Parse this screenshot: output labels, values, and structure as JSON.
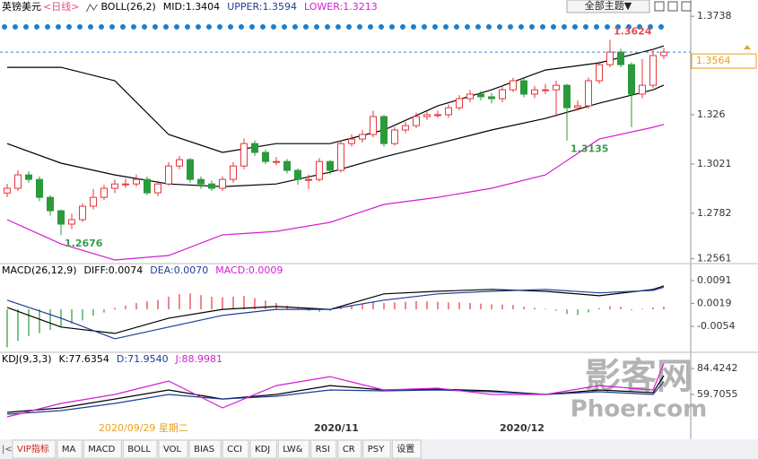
{
  "header": {
    "title": "英镑美元",
    "period": "<日线>",
    "theme_button": "全部主题▼",
    "cursor_date": "2020/09/29 星期二",
    "watermark": {
      "title": "影客网",
      "site": "Phoer.com"
    },
    "tabs": [
      "VIP指标",
      "MA",
      "MACD",
      "BOLL",
      "VOL",
      "BIAS",
      "CCI",
      "KDJ",
      "LW&",
      "RSI",
      "CR",
      "PSY",
      "设置"
    ]
  },
  "chart_data": [
    {
      "type": "candlestick",
      "indicator": "BOLL(26,2)",
      "up_color": "#e8363b",
      "down_color": "#2a9a3a",
      "open": [
        1.288,
        1.2903,
        1.2968,
        1.2946,
        1.2859,
        1.2794,
        1.2729,
        1.2751,
        1.2816,
        1.2859,
        1.2903,
        1.2924,
        1.2924,
        1.2946,
        1.2881,
        1.2924,
        1.3011,
        1.3042,
        1.2946,
        1.2924,
        1.2903,
        1.2946,
        1.3011,
        1.312,
        1.3077,
        1.3033,
        1.3033,
        1.299,
        1.2946,
        1.2946,
        1.3033,
        1.299,
        1.312,
        1.3142,
        1.3164,
        1.3251,
        1.312,
        1.3186,
        1.3207,
        1.3251,
        1.326,
        1.326,
        1.3294,
        1.3338,
        1.336,
        1.3347,
        1.3338,
        1.3381,
        1.3425,
        1.336,
        1.3381,
        1.3381,
        1.3403,
        1.3294,
        1.3303,
        1.3425,
        1.3503,
        1.3564,
        1.3503,
        1.336,
        1.3403,
        1.3547
      ],
      "high": [
        1.2925,
        1.299,
        1.2985,
        1.296,
        1.287,
        1.28,
        1.278,
        1.283,
        1.29,
        1.292,
        1.2945,
        1.295,
        1.297,
        1.296,
        1.294,
        1.303,
        1.306,
        1.305,
        1.296,
        1.294,
        1.296,
        1.303,
        1.3145,
        1.3135,
        1.309,
        1.3055,
        1.3045,
        1.3,
        1.297,
        1.305,
        1.304,
        1.3135,
        1.3165,
        1.3185,
        1.328,
        1.326,
        1.32,
        1.3225,
        1.327,
        1.3275,
        1.328,
        1.331,
        1.3355,
        1.338,
        1.3375,
        1.3365,
        1.34,
        1.344,
        1.3435,
        1.34,
        1.341,
        1.3425,
        1.341,
        1.333,
        1.344,
        1.352,
        1.3624,
        1.358,
        1.3515,
        1.353,
        1.358,
        1.3585
      ],
      "low": [
        1.286,
        1.289,
        1.293,
        1.284,
        1.277,
        1.2676,
        1.2705,
        1.274,
        1.28,
        1.2845,
        1.288,
        1.2905,
        1.291,
        1.287,
        1.2865,
        1.2915,
        1.2995,
        1.293,
        1.29,
        1.289,
        1.289,
        1.293,
        1.2995,
        1.306,
        1.302,
        1.3015,
        1.2975,
        1.292,
        1.29,
        1.2935,
        1.297,
        1.298,
        1.3105,
        1.3125,
        1.315,
        1.3105,
        1.311,
        1.317,
        1.3195,
        1.3235,
        1.3245,
        1.3245,
        1.328,
        1.332,
        1.333,
        1.3315,
        1.332,
        1.337,
        1.3345,
        1.334,
        1.336,
        1.325,
        1.3135,
        1.328,
        1.329,
        1.341,
        1.349,
        1.349,
        1.32,
        1.334,
        1.339,
        1.353
      ],
      "close": [
        1.2903,
        1.2968,
        1.2946,
        1.2859,
        1.2794,
        1.2729,
        1.2751,
        1.2816,
        1.2859,
        1.2903,
        1.2924,
        1.2924,
        1.2946,
        1.2881,
        1.2924,
        1.3011,
        1.3042,
        1.2946,
        1.2924,
        1.2903,
        1.2946,
        1.3011,
        1.312,
        1.3077,
        1.3033,
        1.3033,
        1.299,
        1.2946,
        1.2946,
        1.3033,
        1.299,
        1.312,
        1.3142,
        1.3164,
        1.3251,
        1.312,
        1.3186,
        1.3207,
        1.3251,
        1.326,
        1.326,
        1.3294,
        1.3338,
        1.336,
        1.3347,
        1.3338,
        1.3381,
        1.3425,
        1.336,
        1.3381,
        1.3381,
        1.3403,
        1.3294,
        1.3303,
        1.3425,
        1.3503,
        1.3564,
        1.3503,
        1.336,
        1.3403,
        1.3547,
        1.3564
      ],
      "series": [
        {
          "label": "MID:1.3404",
          "color": "#000000",
          "x": [
            0,
            5,
            10,
            15,
            20,
            25,
            30,
            35,
            40,
            45,
            50,
            55,
            60,
            61
          ],
          "values": [
            1.312,
            1.3025,
            1.2968,
            1.2924,
            1.2911,
            1.2924,
            1.2981,
            1.3055,
            1.312,
            1.3186,
            1.3242,
            1.3316,
            1.3381,
            1.3404
          ]
        },
        {
          "label": "UPPER:1.3594",
          "color": "#000000",
          "text_color": "#1e3c96",
          "x": [
            0,
            5,
            10,
            15,
            20,
            25,
            30,
            35,
            40,
            45,
            50,
            55,
            60,
            61
          ],
          "values": [
            1.349,
            1.349,
            1.3425,
            1.3164,
            1.3077,
            1.312,
            1.312,
            1.3186,
            1.3303,
            1.3381,
            1.3477,
            1.3512,
            1.3577,
            1.3594
          ]
        },
        {
          "label": "LOWER:1.3213",
          "color": "#d21ed2",
          "x": [
            0,
            5,
            10,
            15,
            20,
            25,
            30,
            35,
            40,
            45,
            50,
            55,
            60,
            61
          ],
          "values": [
            1.2751,
            1.2633,
            1.2555,
            1.2577,
            1.2677,
            1.2694,
            1.2738,
            1.2825,
            1.2859,
            1.2903,
            1.2968,
            1.3142,
            1.3199,
            1.3213
          ]
        }
      ],
      "ylim": [
        1.2542,
        1.3782
      ],
      "yticks": [
        1.3738,
        1.326,
        1.3021,
        1.2782,
        1.2561
      ]
    },
    {
      "type": "macd",
      "indicator": "MACD(26,12,9)",
      "up_color": "#e8363b",
      "down_color": "#2a9a3a",
      "histogram": {
        "label": "MACD:0.0009",
        "color": "#d21ed2",
        "values": [
          -0.012,
          -0.01,
          -0.0085,
          -0.0075,
          -0.0065,
          -0.0055,
          -0.0045,
          -0.0035,
          -0.002,
          -0.001,
          0.0005,
          0.0012,
          0.002,
          0.0025,
          0.003,
          0.004,
          0.0048,
          0.005,
          0.0045,
          0.004,
          0.0038,
          0.004,
          0.0042,
          0.0035,
          0.0028,
          0.002,
          0.0012,
          0.0005,
          -0.0005,
          -0.0008,
          -0.0005,
          0.0005,
          0.0012,
          0.0018,
          0.0025,
          0.002,
          0.0022,
          0.0024,
          0.0026,
          0.0025,
          0.0024,
          0.0022,
          0.0022,
          0.002,
          0.0018,
          0.0016,
          0.0015,
          0.0014,
          0.0008,
          0.0005,
          0.0002,
          -0.0004,
          -0.0015,
          -0.0018,
          -0.001,
          0.0004,
          0.001,
          0.0008,
          -0.0003,
          0.0002,
          0.0006,
          0.0009
        ]
      },
      "series": [
        {
          "label": "DIFF:0.0074",
          "color": "#000000",
          "x": [
            0,
            5,
            10,
            15,
            20,
            25,
            30,
            35,
            40,
            45,
            50,
            55,
            60,
            61
          ],
          "values": [
            0.0006,
            -0.0056,
            -0.0076,
            -0.0028,
            0.0,
            0.0009,
            0.0,
            0.0049,
            0.0057,
            0.0063,
            0.0057,
            0.0043,
            0.0063,
            0.0074
          ]
        },
        {
          "label": "DEA:0.0070",
          "color": "#1e3c96",
          "x": [
            0,
            5,
            10,
            15,
            20,
            25,
            30,
            35,
            40,
            45,
            50,
            55,
            60,
            61
          ],
          "values": [
            0.0029,
            -0.0028,
            -0.0093,
            -0.0056,
            -0.0019,
            0.0,
            0.0,
            0.0029,
            0.0049,
            0.0057,
            0.0063,
            0.0052,
            0.006,
            0.007
          ]
        }
      ],
      "ylim": [
        -0.0133,
        0.0139
      ],
      "yticks": [
        0.0091,
        0.0019,
        -0.0054
      ]
    },
    {
      "type": "kdj",
      "indicator": "KDJ(9,3,3)",
      "x_labels": [
        "2020/11",
        "2020/12"
      ],
      "series": [
        {
          "label": "K:77.6354",
          "color": "#000000",
          "x": [
            0,
            5,
            10,
            15,
            20,
            25,
            30,
            35,
            40,
            45,
            50,
            55,
            60,
            61
          ],
          "values": [
            42.7,
            46.9,
            55.4,
            64.0,
            55.4,
            59.7,
            68.2,
            64.0,
            64.8,
            63.1,
            59.7,
            64.0,
            61.4,
            77.6354
          ]
        },
        {
          "label": "D:71.9540",
          "color": "#1e3c96",
          "x": [
            0,
            5,
            10,
            15,
            20,
            25,
            30,
            35,
            40,
            45,
            50,
            55,
            60,
            61
          ],
          "values": [
            41.0,
            44.4,
            51.2,
            59.7,
            55.4,
            58.0,
            64.0,
            63.1,
            64.0,
            62.3,
            59.7,
            62.3,
            59.7,
            71.954
          ]
        },
        {
          "label": "J:88.9981",
          "color": "#d21ed2",
          "x": [
            0,
            5,
            10,
            15,
            20,
            25,
            30,
            35,
            40,
            45,
            50,
            55,
            60,
            61
          ],
          "values": [
            38.4,
            51.2,
            59.7,
            72.5,
            46.9,
            68.2,
            76.7,
            64.0,
            65.7,
            59.7,
            59.7,
            68.2,
            64.0,
            88.9981
          ]
        }
      ],
      "ylim": [
        18.8,
        98.1
      ],
      "yticks": [
        84.4242,
        59.7055
      ]
    }
  ]
}
